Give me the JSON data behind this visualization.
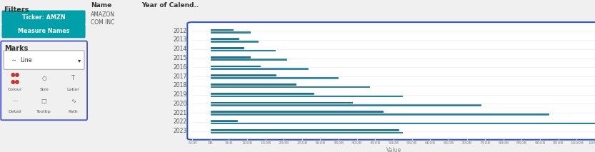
{
  "years": [
    2012,
    2013,
    2014,
    2015,
    2016,
    2017,
    2018,
    2019,
    2020,
    2021,
    2022,
    2023
  ],
  "amazon_values": [
    62,
    76,
    91,
    107,
    136,
    178,
    233,
    281,
    386,
    470,
    72,
    514
  ],
  "cominc_values": [
    107,
    130,
    177,
    207,
    265,
    348,
    433,
    524,
    737,
    924,
    1050,
    524
  ],
  "fig_bg": "#f0f0f0",
  "sidebar_bg": "#f0f0f0",
  "chart_bg": "#ffffff",
  "chart_border_color": "#3355cc",
  "line_color": "#1a6e8e",
  "grid_color": "#e8e8e8",
  "filter_pill_color": "#00a0aa",
  "marks_border_color": "#4455cc",
  "tick_color": "#888888",
  "label_color": "#444444",
  "xlabel": "Value",
  "xlim_min": -50,
  "xlim_max": 1050,
  "xtick_step": 50,
  "col_headers": [
    "Name",
    "Year of Calend.."
  ],
  "name_labels": [
    "AMAZON",
    "COM INC"
  ],
  "sidebar_title": "Filters",
  "pills": [
    "Ticker: AMZN",
    "Measure Names"
  ],
  "marks_title": "Marks",
  "line_label": "Line"
}
